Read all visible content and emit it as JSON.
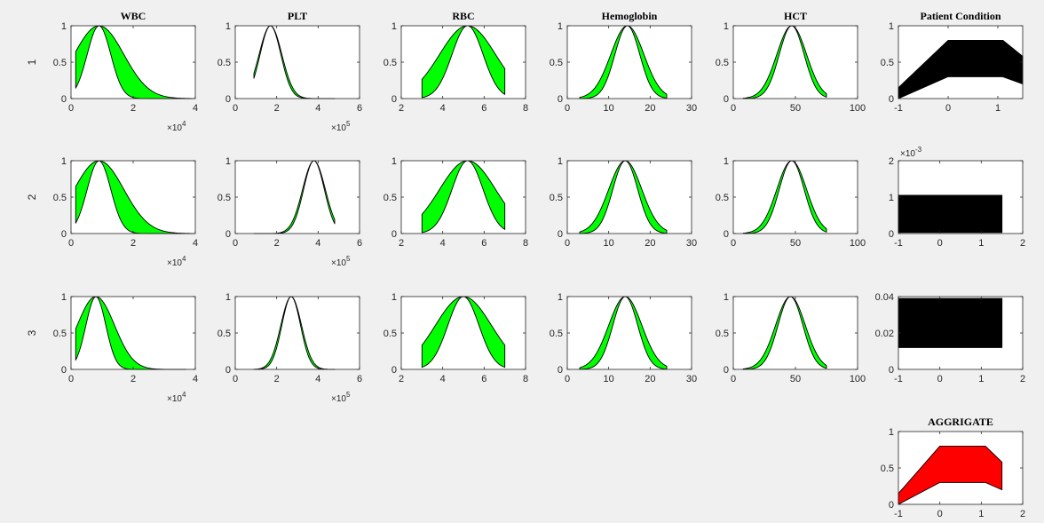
{
  "figure": {
    "columns": [
      "WBC",
      "PLT",
      "RBC",
      "Hemoglobin",
      "HCT",
      "Patient Condition"
    ],
    "rows": [
      "1",
      "2",
      "3"
    ],
    "aggregate_title": "AGGRIGATE"
  },
  "chart_data": [
    {
      "type": "area",
      "row": "1",
      "title": "WBC",
      "xlim": [
        0,
        4
      ],
      "ylim": [
        0,
        1
      ],
      "xticks": [
        "0",
        "2",
        "4"
      ],
      "yticks": [
        "0",
        "0.5",
        "1"
      ],
      "x_exponent": "×10^4",
      "series": [
        {
          "kind": "gaussian-band",
          "mean": 0.9,
          "sd_lower": 0.38,
          "sd_upper": 0.8,
          "x_range": [
            0.15,
            3.9
          ],
          "fill": "#00ff00"
        }
      ]
    },
    {
      "type": "area",
      "row": "1",
      "title": "PLT",
      "xlim": [
        0,
        6
      ],
      "ylim": [
        0,
        1
      ],
      "xticks": [
        "0",
        "2",
        "4",
        "6"
      ],
      "yticks": [
        "0",
        "0.5",
        "1"
      ],
      "x_exponent": "×10^5",
      "series": [
        {
          "kind": "gaussian-band",
          "mean": 1.7,
          "sd_lower": 0.5,
          "sd_upper": 0.55,
          "x_range": [
            0.9,
            4.8
          ],
          "fill": "#00ff00"
        }
      ]
    },
    {
      "type": "area",
      "row": "1",
      "title": "RBC",
      "xlim": [
        2,
        8
      ],
      "ylim": [
        0,
        1
      ],
      "xticks": [
        "2",
        "4",
        "6",
        "8"
      ],
      "yticks": [
        "0",
        "0.5",
        "1"
      ],
      "series": [
        {
          "kind": "gaussian-band",
          "mean": 5.2,
          "sd_lower": 0.75,
          "sd_upper": 1.35,
          "x_range": [
            3,
            7
          ],
          "fill": "#00ff00"
        }
      ]
    },
    {
      "type": "area",
      "row": "1",
      "title": "Hemoglobin",
      "xlim": [
        0,
        30
      ],
      "ylim": [
        0,
        1
      ],
      "xticks": [
        "0",
        "10",
        "20",
        "30"
      ],
      "yticks": [
        "0",
        "0.5",
        "1"
      ],
      "series": [
        {
          "kind": "gaussian-band",
          "mean": 14.5,
          "sd_lower": 3.0,
          "sd_upper": 4.0,
          "x_range": [
            3,
            24
          ],
          "fill": "#00ff00"
        }
      ]
    },
    {
      "type": "area",
      "row": "1",
      "title": "HCT",
      "xlim": [
        0,
        100
      ],
      "ylim": [
        0,
        1
      ],
      "xticks": [
        "0",
        "50",
        "100"
      ],
      "yticks": [
        "0",
        "0.5",
        "1"
      ],
      "series": [
        {
          "kind": "gaussian-band",
          "mean": 47,
          "sd_lower": 10,
          "sd_upper": 12,
          "x_range": [
            8,
            75
          ],
          "fill": "#00ff00"
        }
      ]
    },
    {
      "type": "area",
      "row": "1",
      "title": "Patient Condition",
      "xlim": [
        -1,
        1.5
      ],
      "ylim": [
        0,
        1
      ],
      "xticks": [
        "-1",
        "0",
        "1"
      ],
      "yticks": [
        "0",
        "0.5",
        "1"
      ],
      "series": [
        {
          "kind": "band",
          "x": [
            -1,
            0,
            1.1,
            1.5
          ],
          "lower": [
            0,
            0.3,
            0.3,
            0.2
          ],
          "upper": [
            0.15,
            0.8,
            0.8,
            0.58
          ],
          "fill": "#000000"
        }
      ]
    },
    {
      "type": "area",
      "row": "2",
      "title": "WBC",
      "xlim": [
        0,
        4
      ],
      "ylim": [
        0,
        1
      ],
      "xticks": [
        "0",
        "2",
        "4"
      ],
      "yticks": [
        "0",
        "0.5",
        "1"
      ],
      "x_exponent": "×10^4",
      "series": [
        {
          "kind": "gaussian-band",
          "mean": 0.9,
          "sd_lower": 0.38,
          "sd_upper": 0.8,
          "x_range": [
            0.15,
            3.9
          ],
          "fill": "#00ff00"
        }
      ]
    },
    {
      "type": "area",
      "row": "2",
      "title": "PLT",
      "xlim": [
        0,
        6
      ],
      "ylim": [
        0,
        1
      ],
      "xticks": [
        "0",
        "2",
        "4",
        "6"
      ],
      "yticks": [
        "0",
        "0.5",
        "1"
      ],
      "x_exponent": "×10^5",
      "series": [
        {
          "kind": "gaussian-band",
          "mean": 3.8,
          "sd_lower": 0.5,
          "sd_upper": 0.55,
          "x_range": [
            0.9,
            4.8
          ],
          "fill": "#00ff00"
        }
      ]
    },
    {
      "type": "area",
      "row": "2",
      "title": "RBC",
      "xlim": [
        2,
        8
      ],
      "ylim": [
        0,
        1
      ],
      "xticks": [
        "2",
        "4",
        "6",
        "8"
      ],
      "yticks": [
        "0",
        "0.5",
        "1"
      ],
      "series": [
        {
          "kind": "gaussian-band",
          "mean": 5.2,
          "sd_lower": 0.75,
          "sd_upper": 1.35,
          "x_range": [
            3,
            7
          ],
          "fill": "#00ff00"
        }
      ]
    },
    {
      "type": "area",
      "row": "2",
      "title": "Hemoglobin",
      "xlim": [
        0,
        30
      ],
      "ylim": [
        0,
        1
      ],
      "xticks": [
        "0",
        "10",
        "20",
        "30"
      ],
      "yticks": [
        "0",
        "0.5",
        "1"
      ],
      "series": [
        {
          "kind": "gaussian-band",
          "mean": 14,
          "sd_lower": 3.0,
          "sd_upper": 4.0,
          "x_range": [
            3,
            24
          ],
          "fill": "#00ff00"
        }
      ]
    },
    {
      "type": "area",
      "row": "2",
      "title": "HCT",
      "xlim": [
        0,
        100
      ],
      "ylim": [
        0,
        1
      ],
      "xticks": [
        "0",
        "50",
        "100"
      ],
      "yticks": [
        "0",
        "0.5",
        "1"
      ],
      "series": [
        {
          "kind": "gaussian-band",
          "mean": 47,
          "sd_lower": 10,
          "sd_upper": 12,
          "x_range": [
            8,
            75
          ],
          "fill": "#00ff00"
        }
      ]
    },
    {
      "type": "area",
      "row": "2",
      "title": "Patient Condition",
      "xlim": [
        -1,
        2
      ],
      "ylim": [
        0,
        2
      ],
      "xticks": [
        "-1",
        "0",
        "1",
        "2"
      ],
      "yticks": [
        "0",
        "1",
        "2"
      ],
      "y_exponent": "×10^-3",
      "series": [
        {
          "kind": "band",
          "x": [
            -1,
            1.5
          ],
          "lower": [
            0.03,
            0.03
          ],
          "upper": [
            1.05,
            1.05
          ],
          "fill": "#000000"
        }
      ]
    },
    {
      "type": "area",
      "row": "3",
      "title": "WBC",
      "xlim": [
        0,
        4
      ],
      "ylim": [
        0,
        1
      ],
      "xticks": [
        "0",
        "2",
        "4"
      ],
      "yticks": [
        "0",
        "0.5",
        "1"
      ],
      "x_exponent": "×10^4",
      "series": [
        {
          "kind": "gaussian-band",
          "mean": 0.8,
          "sd_lower": 0.32,
          "sd_upper": 0.6,
          "x_range": [
            0.15,
            3.7
          ],
          "fill": "#00ff00"
        }
      ]
    },
    {
      "type": "area",
      "row": "3",
      "title": "PLT",
      "xlim": [
        0,
        6
      ],
      "ylim": [
        0,
        1
      ],
      "xticks": [
        "0",
        "2",
        "4",
        "6"
      ],
      "yticks": [
        "0",
        "0.5",
        "1"
      ],
      "x_exponent": "×10^5",
      "series": [
        {
          "kind": "gaussian-band",
          "mean": 2.7,
          "sd_lower": 0.45,
          "sd_upper": 0.5,
          "x_range": [
            0.9,
            4.8
          ],
          "fill": "#00ff00"
        }
      ]
    },
    {
      "type": "area",
      "row": "3",
      "title": "RBC",
      "xlim": [
        2,
        8
      ],
      "ylim": [
        0,
        1
      ],
      "xticks": [
        "2",
        "4",
        "6",
        "8"
      ],
      "yticks": [
        "0",
        "0.5",
        "1"
      ],
      "series": [
        {
          "kind": "gaussian-band",
          "mean": 5.0,
          "sd_lower": 0.75,
          "sd_upper": 1.35,
          "x_range": [
            3,
            7
          ],
          "fill": "#00ff00"
        }
      ]
    },
    {
      "type": "area",
      "row": "3",
      "title": "Hemoglobin",
      "xlim": [
        0,
        30
      ],
      "ylim": [
        0,
        1
      ],
      "xticks": [
        "0",
        "10",
        "20",
        "30"
      ],
      "yticks": [
        "0",
        "0.5",
        "1"
      ],
      "series": [
        {
          "kind": "gaussian-band",
          "mean": 14,
          "sd_lower": 3.0,
          "sd_upper": 4.0,
          "x_range": [
            3,
            24
          ],
          "fill": "#00ff00"
        }
      ]
    },
    {
      "type": "area",
      "row": "3",
      "title": "HCT",
      "xlim": [
        0,
        100
      ],
      "ylim": [
        0,
        1
      ],
      "xticks": [
        "0",
        "50",
        "100"
      ],
      "yticks": [
        "0",
        "0.5",
        "1"
      ],
      "series": [
        {
          "kind": "gaussian-band",
          "mean": 46,
          "sd_lower": 10,
          "sd_upper": 12,
          "x_range": [
            8,
            75
          ],
          "fill": "#00ff00"
        }
      ]
    },
    {
      "type": "area",
      "row": "3",
      "title": "Patient Condition",
      "xlim": [
        -1,
        2
      ],
      "ylim": [
        0,
        0.04
      ],
      "xticks": [
        "-1",
        "0",
        "1",
        "2"
      ],
      "yticks": [
        "0",
        "0.02",
        "0.04"
      ],
      "series": [
        {
          "kind": "band",
          "x": [
            -1,
            1.5
          ],
          "lower": [
            0.012,
            0.012
          ],
          "upper": [
            0.039,
            0.039
          ],
          "fill": "#000000"
        }
      ]
    },
    {
      "type": "area",
      "title": "AGGRIGATE",
      "xlim": [
        -1,
        2
      ],
      "ylim": [
        0,
        1
      ],
      "xticks": [
        "-1",
        "0",
        "1",
        "2"
      ],
      "yticks": [
        "0",
        "0.5",
        "1"
      ],
      "series": [
        {
          "kind": "band",
          "x": [
            -1,
            0,
            1.1,
            1.5
          ],
          "lower": [
            0,
            0.3,
            0.3,
            0.2
          ],
          "upper": [
            0.15,
            0.8,
            0.8,
            0.58
          ],
          "fill": "#ff0000"
        }
      ]
    }
  ]
}
